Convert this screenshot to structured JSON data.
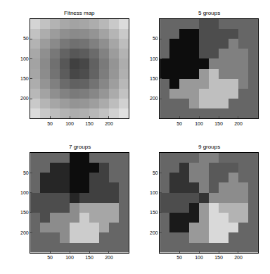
{
  "chart_data": [
    {
      "type": "heatmap",
      "title": "Fitness map",
      "color": "gray",
      "x": [
        12.5,
        37.5,
        62.5,
        87.5,
        112.5,
        137.5,
        162.5,
        187.5,
        212.5,
        237.5
      ],
      "y": [
        12.5,
        37.5,
        62.5,
        87.5,
        112.5,
        137.5,
        162.5,
        187.5,
        212.5,
        237.5
      ],
      "xlim": [
        0,
        250
      ],
      "ylim": [
        250,
        0
      ],
      "xticks": [
        50,
        100,
        150,
        200
      ],
      "yticks": [
        50,
        100,
        150,
        200
      ],
      "zlim": [
        0,
        1
      ],
      "z": [
        [
          0.83,
          0.76,
          0.7,
          0.66,
          0.64,
          0.65,
          0.68,
          0.72,
          0.79,
          0.86
        ],
        [
          0.76,
          0.68,
          0.61,
          0.56,
          0.54,
          0.55,
          0.58,
          0.64,
          0.71,
          0.79
        ],
        [
          0.7,
          0.61,
          0.54,
          0.47,
          0.44,
          0.45,
          0.5,
          0.56,
          0.65,
          0.74
        ],
        [
          0.66,
          0.56,
          0.47,
          0.39,
          0.34,
          0.36,
          0.42,
          0.51,
          0.61,
          0.7
        ],
        [
          0.64,
          0.54,
          0.44,
          0.34,
          0.25,
          0.28,
          0.38,
          0.48,
          0.58,
          0.68
        ],
        [
          0.65,
          0.55,
          0.45,
          0.36,
          0.28,
          0.3,
          0.39,
          0.49,
          0.59,
          0.69
        ],
        [
          0.68,
          0.58,
          0.5,
          0.42,
          0.38,
          0.39,
          0.45,
          0.53,
          0.62,
          0.72
        ],
        [
          0.72,
          0.64,
          0.56,
          0.51,
          0.48,
          0.49,
          0.53,
          0.59,
          0.67,
          0.76
        ],
        [
          0.79,
          0.71,
          0.65,
          0.61,
          0.58,
          0.59,
          0.62,
          0.67,
          0.74,
          0.82
        ],
        [
          0.86,
          0.79,
          0.74,
          0.7,
          0.68,
          0.69,
          0.72,
          0.76,
          0.82,
          0.88
        ]
      ]
    },
    {
      "type": "heatmap",
      "title": "5 groups",
      "color": "gray",
      "x": [
        12.5,
        37.5,
        62.5,
        87.5,
        112.5,
        137.5,
        162.5,
        187.5,
        212.5,
        237.5
      ],
      "y": [
        12.5,
        37.5,
        62.5,
        87.5,
        112.5,
        137.5,
        162.5,
        187.5,
        212.5,
        237.5
      ],
      "xlim": [
        0,
        250
      ],
      "ylim": [
        250,
        0
      ],
      "xticks": [
        50,
        100,
        150,
        200
      ],
      "yticks": [
        50,
        100,
        150,
        200
      ],
      "zlim": [
        0,
        1
      ],
      "z": [
        [
          0.4,
          0.4,
          0.4,
          0.4,
          0.3,
          0.3,
          0.4,
          0.4,
          0.4,
          0.4
        ],
        [
          0.4,
          0.4,
          0.05,
          0.05,
          0.3,
          0.3,
          0.3,
          0.3,
          0.4,
          0.4
        ],
        [
          0.4,
          0.05,
          0.05,
          0.05,
          0.3,
          0.3,
          0.3,
          0.5,
          0.4,
          0.4
        ],
        [
          0.4,
          0.05,
          0.05,
          0.05,
          0.3,
          0.3,
          0.5,
          0.5,
          0.5,
          0.4
        ],
        [
          0.05,
          0.05,
          0.05,
          0.05,
          0.05,
          0.5,
          0.5,
          0.5,
          0.5,
          0.4
        ],
        [
          0.05,
          0.05,
          0.05,
          0.05,
          0.6,
          0.75,
          0.5,
          0.5,
          0.5,
          0.4
        ],
        [
          0.4,
          0.05,
          0.6,
          0.6,
          0.6,
          0.75,
          0.75,
          0.75,
          0.5,
          0.4
        ],
        [
          0.4,
          0.6,
          0.6,
          0.6,
          0.75,
          0.75,
          0.75,
          0.75,
          0.4,
          0.4
        ],
        [
          0.4,
          0.4,
          0.4,
          0.6,
          0.75,
          0.75,
          0.75,
          0.4,
          0.4,
          0.4
        ],
        [
          0.4,
          0.4,
          0.4,
          0.4,
          0.4,
          0.4,
          0.4,
          0.4,
          0.4,
          0.4
        ]
      ]
    },
    {
      "type": "heatmap",
      "title": "7 groups",
      "color": "gray",
      "x": [
        12.5,
        37.5,
        62.5,
        87.5,
        112.5,
        137.5,
        162.5,
        187.5,
        212.5,
        237.5
      ],
      "y": [
        12.5,
        37.5,
        62.5,
        87.5,
        112.5,
        137.5,
        162.5,
        187.5,
        212.5,
        237.5
      ],
      "xlim": [
        0,
        250
      ],
      "ylim": [
        250,
        0
      ],
      "xticks": [
        50,
        100,
        150,
        200
      ],
      "yticks": [
        50,
        100,
        150,
        200
      ],
      "zlim": [
        0,
        1
      ],
      "z": [
        [
          0.4,
          0.4,
          0.4,
          0.4,
          0.05,
          0.05,
          0.4,
          0.4,
          0.4,
          0.4
        ],
        [
          0.4,
          0.4,
          0.15,
          0.15,
          0.05,
          0.05,
          0.05,
          0.25,
          0.4,
          0.4
        ],
        [
          0.4,
          0.15,
          0.15,
          0.15,
          0.05,
          0.05,
          0.25,
          0.25,
          0.4,
          0.4
        ],
        [
          0.4,
          0.15,
          0.15,
          0.15,
          0.05,
          0.05,
          0.25,
          0.25,
          0.25,
          0.4
        ],
        [
          0.3,
          0.3,
          0.3,
          0.3,
          0.15,
          0.25,
          0.25,
          0.25,
          0.25,
          0.4
        ],
        [
          0.3,
          0.3,
          0.3,
          0.3,
          0.55,
          0.65,
          0.65,
          0.65,
          0.65,
          0.4
        ],
        [
          0.4,
          0.3,
          0.55,
          0.55,
          0.55,
          0.8,
          0.65,
          0.65,
          0.65,
          0.4
        ],
        [
          0.4,
          0.55,
          0.55,
          0.55,
          0.8,
          0.8,
          0.8,
          0.65,
          0.4,
          0.4
        ],
        [
          0.4,
          0.4,
          0.4,
          0.55,
          0.8,
          0.8,
          0.8,
          0.4,
          0.4,
          0.4
        ],
        [
          0.4,
          0.4,
          0.4,
          0.4,
          0.4,
          0.4,
          0.4,
          0.4,
          0.4,
          0.4
        ]
      ]
    },
    {
      "type": "heatmap",
      "title": "9 groups",
      "color": "gray",
      "x": [
        12.5,
        37.5,
        62.5,
        87.5,
        112.5,
        137.5,
        162.5,
        187.5,
        212.5,
        237.5
      ],
      "y": [
        12.5,
        37.5,
        62.5,
        87.5,
        112.5,
        137.5,
        162.5,
        187.5,
        212.5,
        237.5
      ],
      "xlim": [
        0,
        250
      ],
      "ylim": [
        250,
        0
      ],
      "xticks": [
        50,
        100,
        150,
        200
      ],
      "yticks": [
        50,
        100,
        150,
        200
      ],
      "zlim": [
        0,
        1
      ],
      "z": [
        [
          0.4,
          0.4,
          0.4,
          0.4,
          0.5,
          0.5,
          0.4,
          0.4,
          0.4,
          0.4
        ],
        [
          0.4,
          0.4,
          0.2,
          0.5,
          0.5,
          0.35,
          0.35,
          0.35,
          0.4,
          0.4
        ],
        [
          0.4,
          0.2,
          0.2,
          0.5,
          0.5,
          0.35,
          0.35,
          0.55,
          0.4,
          0.4
        ],
        [
          0.4,
          0.2,
          0.2,
          0.2,
          0.5,
          0.35,
          0.55,
          0.55,
          0.55,
          0.4
        ],
        [
          0.3,
          0.3,
          0.3,
          0.3,
          0.2,
          0.55,
          0.55,
          0.55,
          0.55,
          0.4
        ],
        [
          0.3,
          0.3,
          0.3,
          0.1,
          0.6,
          0.85,
          0.7,
          0.7,
          0.7,
          0.4
        ],
        [
          0.4,
          0.1,
          0.1,
          0.1,
          0.6,
          0.85,
          0.85,
          0.7,
          0.7,
          0.4
        ],
        [
          0.4,
          0.1,
          0.1,
          0.6,
          0.6,
          0.85,
          0.85,
          0.85,
          0.4,
          0.4
        ],
        [
          0.4,
          0.4,
          0.4,
          0.6,
          0.6,
          0.85,
          0.85,
          0.4,
          0.4,
          0.4
        ],
        [
          0.4,
          0.4,
          0.4,
          0.4,
          0.4,
          0.4,
          0.4,
          0.4,
          0.4,
          0.4
        ]
      ]
    }
  ]
}
